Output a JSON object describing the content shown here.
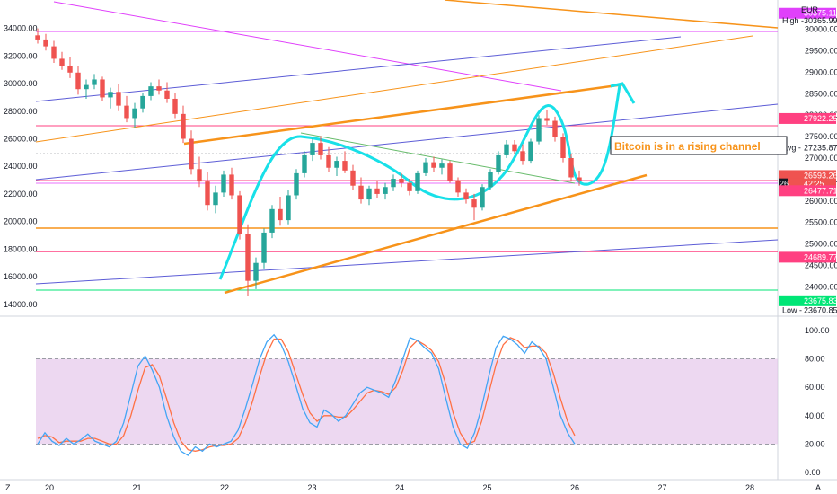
{
  "window": {
    "currency": "EUR",
    "corner_left": "Z",
    "corner_right": "A"
  },
  "chart_data": [
    {
      "type": "candlestick",
      "title": "",
      "x_ticks": [
        "20",
        "21",
        "22",
        "23",
        "24",
        "25",
        "26",
        "27",
        "28"
      ],
      "left_axis": {
        "ticks": [
          "34000.00",
          "32000.00",
          "30000.00",
          "28000.00",
          "26000.00",
          "24000.00",
          "22000.00",
          "20000.00",
          "18000.00",
          "16000.00",
          "14000.00"
        ],
        "range": [
          13400,
          35800
        ]
      },
      "right_axis": {
        "ticks": [
          "30000.00",
          "29500.00",
          "29000.00",
          "28500.00",
          "28000.00",
          "27500.00",
          "27000.00",
          "26500.00",
          "26000.00",
          "25500.00",
          "25000.00",
          "24500.00",
          "24000.00"
        ],
        "range": [
          23400,
          30600
        ]
      },
      "price_tags": [
        {
          "label": "",
          "value": "30375.11",
          "color": "#e040fb",
          "price": 30375.11
        },
        {
          "label": "High",
          "value": "30365.99",
          "color": "#ffffff",
          "price": 30200
        },
        {
          "label": "",
          "value": "27922.25",
          "color": "#ff4081",
          "price": 27922.25
        },
        {
          "label": "Avg",
          "value": "27235.87",
          "color": "#ffffff",
          "price": 27235.87
        },
        {
          "label": "",
          "value": "26593.26",
          "color": "#ef5350",
          "price": 26593.26
        },
        {
          "label": "",
          "value": "26",
          "extra": "42:25",
          "color": "#ef5350",
          "price": 26400
        },
        {
          "label": "",
          "value": "26477.71",
          "color": "#ff4081",
          "price": 26240
        },
        {
          "label": "",
          "value": "24689.77",
          "color": "#ff4081",
          "price": 24689.77
        },
        {
          "label": "",
          "value": "23675.83",
          "color": "#00e676",
          "price": 23675.83
        },
        {
          "label": "Low",
          "value": "23670.85",
          "color": "#ffffff",
          "price": 23450
        }
      ],
      "annotation": "Bitcoin is in a rising channel",
      "series": [
        {
          "type": "candle",
          "ohlc": [
            [
              33500,
              34000,
              32900,
              33200
            ],
            [
              33200,
              33600,
              32400,
              32700
            ],
            [
              32700,
              33100,
              31500,
              31800
            ],
            [
              31800,
              32300,
              31000,
              31300
            ],
            [
              31300,
              31900,
              30400,
              30800
            ],
            [
              30800,
              31300,
              29200,
              29600
            ],
            [
              29600,
              30300,
              28900,
              29900
            ],
            [
              29900,
              30700,
              29600,
              30300
            ],
            [
              30300,
              30500,
              28700,
              29000
            ],
            [
              29000,
              29700,
              28200,
              29400
            ],
            [
              29400,
              30000,
              28000,
              28400
            ],
            [
              28400,
              29100,
              27200,
              27500
            ],
            [
              27500,
              28600,
              26800,
              28200
            ],
            [
              28200,
              29300,
              27900,
              29100
            ],
            [
              29100,
              30100,
              28800,
              29800
            ],
            [
              29800,
              30300,
              29200,
              29500
            ],
            [
              29500,
              30100,
              28600,
              28900
            ],
            [
              28900,
              29300,
              27500,
              27800
            ],
            [
              27800,
              28400,
              25700,
              26000
            ],
            [
              26000,
              26600,
              23400,
              23800
            ],
            [
              23800,
              24700,
              22500,
              22900
            ],
            [
              22900,
              23600,
              20800,
              21200
            ],
            [
              21200,
              22600,
              20600,
              22100
            ],
            [
              22100,
              23700,
              21800,
              23400
            ],
            [
              23400,
              23900,
              21600,
              21900
            ],
            [
              21900,
              22200,
              18700,
              19100
            ],
            [
              19100,
              19800,
              14600,
              15700
            ],
            [
              15700,
              17400,
              15100,
              17000
            ],
            [
              17000,
              19500,
              16600,
              19200
            ],
            [
              19200,
              21200,
              18800,
              20900
            ],
            [
              20900,
              21800,
              19700,
              20100
            ],
            [
              20100,
              22300,
              19800,
              21900
            ],
            [
              21900,
              23800,
              21600,
              23500
            ],
            [
              23500,
              25100,
              23200,
              24800
            ],
            [
              24800,
              26000,
              24400,
              25700
            ],
            [
              25700,
              26200,
              24500,
              24800
            ],
            [
              24800,
              25400,
              23600,
              23900
            ],
            [
              23900,
              24700,
              23300,
              24400
            ],
            [
              24400,
              25100,
              23500,
              23700
            ],
            [
              23700,
              24100,
              22300,
              22600
            ],
            [
              22600,
              23200,
              21300,
              21600
            ],
            [
              21600,
              22600,
              21200,
              22400
            ],
            [
              22400,
              23000,
              21700,
              22000
            ],
            [
              22000,
              22800,
              21600,
              22500
            ],
            [
              22500,
              23400,
              22200,
              23100
            ],
            [
              23100,
              23500,
              22500,
              22800
            ],
            [
              22800,
              23100,
              21900,
              22200
            ],
            [
              22200,
              23700,
              22000,
              23500
            ],
            [
              23500,
              24600,
              23300,
              24300
            ],
            [
              24300,
              24700,
              23600,
              23900
            ],
            [
              23900,
              24500,
              23400,
              24200
            ],
            [
              24200,
              24400,
              22800,
              23000
            ],
            [
              23000,
              23200,
              21800,
              22100
            ],
            [
              22100,
              22400,
              21300,
              21600
            ],
            [
              21600,
              22000,
              20100,
              21000
            ],
            [
              21000,
              22700,
              20800,
              22500
            ],
            [
              22500,
              23800,
              22300,
              23600
            ],
            [
              23600,
              25100,
              23400,
              24800
            ],
            [
              24800,
              25900,
              24600,
              25600
            ],
            [
              25600,
              25900,
              24900,
              25100
            ],
            [
              25100,
              25600,
              24100,
              24400
            ],
            [
              24400,
              26000,
              24200,
              25800
            ],
            [
              25800,
              27700,
              25600,
              27500
            ],
            [
              27500,
              28100,
              27000,
              27300
            ],
            [
              27300,
              27600,
              25800,
              26100
            ],
            [
              26100,
              26400,
              24300,
              24600
            ],
            [
              24600,
              24900,
              22900,
              23200
            ],
            [
              23200,
              23700,
              22600,
              23000
            ]
          ]
        },
        {
          "type": "stochastic",
          "k": [
            20,
            28,
            22,
            19,
            24,
            20,
            23,
            27,
            22,
            20,
            18,
            22,
            35,
            55,
            75,
            82,
            72,
            60,
            40,
            25,
            15,
            12,
            18,
            15,
            20,
            18,
            20,
            22,
            30,
            45,
            62,
            80,
            92,
            97,
            90,
            78,
            62,
            45,
            35,
            32,
            44,
            41,
            36,
            40,
            48,
            56,
            60,
            58,
            56,
            53,
            65,
            80,
            95,
            93,
            88,
            84,
            73,
            52,
            32,
            20,
            17,
            28,
            46,
            68,
            88,
            96,
            94,
            90,
            84,
            92,
            88,
            80,
            60,
            40,
            28,
            20
          ],
          "d": [
            24,
            26,
            25,
            21,
            22,
            22,
            22,
            24,
            24,
            22,
            20,
            20,
            26,
            40,
            58,
            74,
            76,
            68,
            52,
            35,
            22,
            16,
            15,
            16,
            18,
            19,
            19,
            20,
            24,
            35,
            50,
            68,
            84,
            94,
            94,
            85,
            70,
            55,
            42,
            36,
            40,
            40,
            39,
            39,
            44,
            50,
            56,
            58,
            57,
            55,
            60,
            72,
            88,
            93,
            90,
            86,
            78,
            62,
            42,
            28,
            20,
            22,
            36,
            56,
            76,
            90,
            95,
            93,
            88,
            89,
            89,
            84,
            70,
            52,
            36,
            26
          ],
          "y_ticks": [
            "100.00",
            "80.00",
            "60.00",
            "40.00",
            "20.00",
            "0.00"
          ],
          "band": [
            20,
            80
          ],
          "range": [
            0,
            100
          ]
        }
      ]
    }
  ]
}
